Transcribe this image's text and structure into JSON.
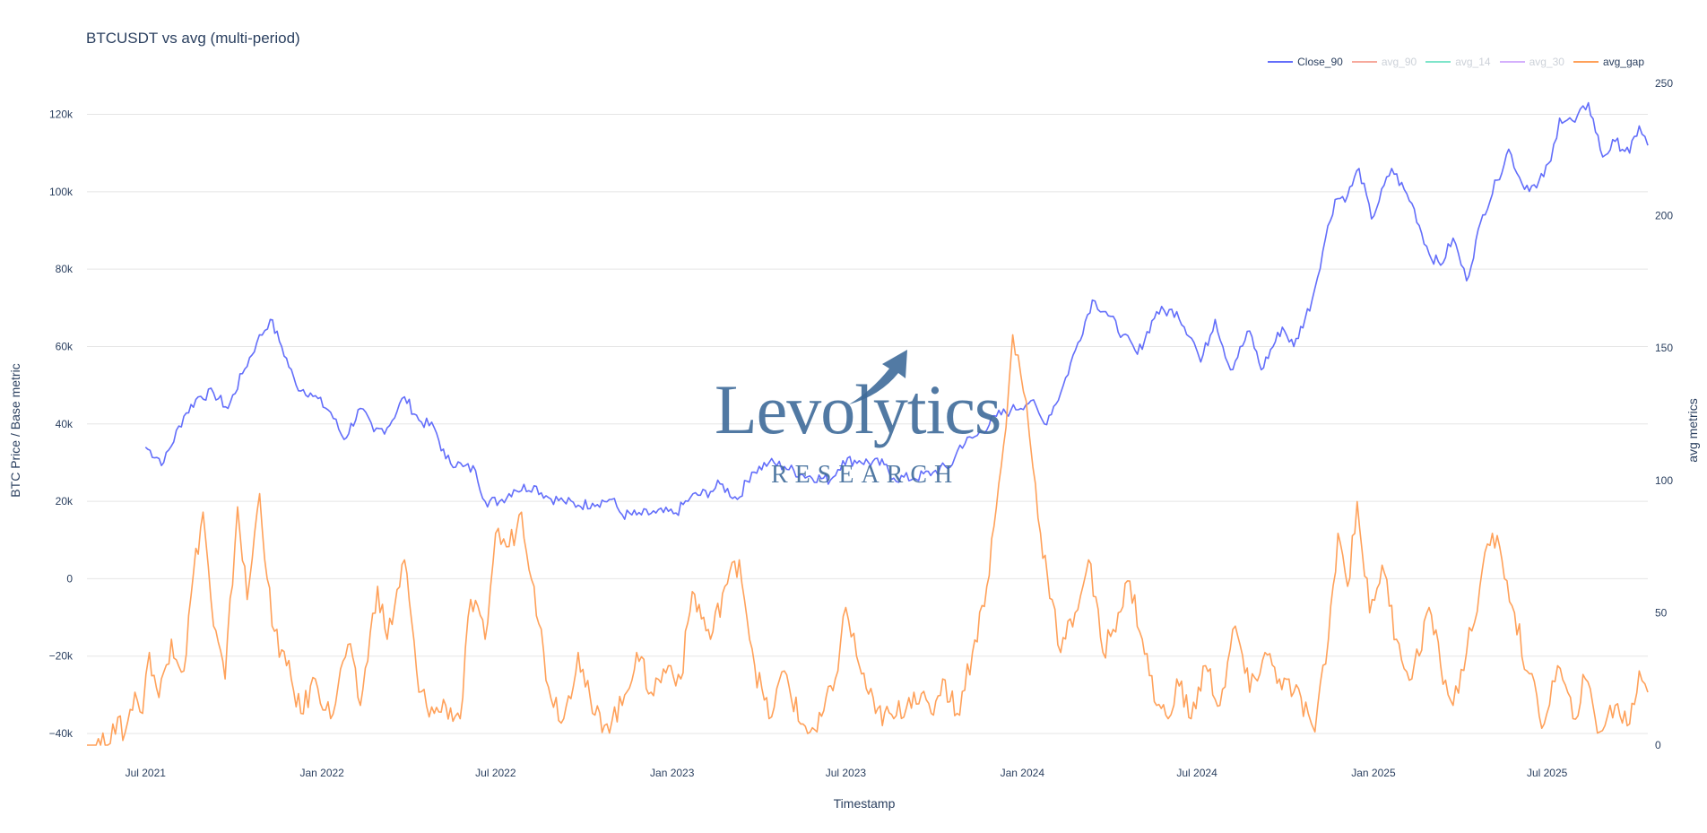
{
  "title": "BTCUSDT vs avg (multi-period)",
  "legend": [
    {
      "label": "Close_90",
      "color": "#636efa",
      "visible": true
    },
    {
      "label": "avg_90",
      "color": "#ef553b",
      "visible": false
    },
    {
      "label": "avg_14",
      "color": "#00cc96",
      "visible": false
    },
    {
      "label": "avg_30",
      "color": "#ab63fa",
      "visible": false
    },
    {
      "label": "avg_gap",
      "color": "#ffa15a",
      "visible": true
    }
  ],
  "watermark": {
    "word": "Levolytics",
    "sub": "RESEARCH"
  },
  "colors": {
    "grid": "#e5e5e5",
    "axis_text": "#2a3f5f",
    "close": "#636efa",
    "gap": "#ffa15a"
  },
  "chart_data": {
    "type": "line",
    "title": "BTCUSDT vs avg (multi-period)",
    "xlabel": "Timestamp",
    "ylabel": "BTC Price / Base metric",
    "y2label": "avg metrics",
    "ylim": [
      -43000,
      128000
    ],
    "y2lim": [
      0,
      250
    ],
    "x_range": [
      "2021-05-01",
      "2025-10-14"
    ],
    "x_ticks": [
      {
        "date": "2021-07-01",
        "label": "Jul 2021"
      },
      {
        "date": "2022-01-01",
        "label": "Jan 2022"
      },
      {
        "date": "2022-07-01",
        "label": "Jul 2022"
      },
      {
        "date": "2023-01-01",
        "label": "Jan 2023"
      },
      {
        "date": "2023-07-01",
        "label": "Jul 2023"
      },
      {
        "date": "2024-01-01",
        "label": "Jan 2024"
      },
      {
        "date": "2024-07-01",
        "label": "Jul 2024"
      },
      {
        "date": "2025-01-01",
        "label": "Jan 2025"
      },
      {
        "date": "2025-07-01",
        "label": "Jul 2025"
      }
    ],
    "y_ticks": [
      {
        "value": 120000,
        "label": "120k"
      },
      {
        "value": 100000,
        "label": "100k"
      },
      {
        "value": 80000,
        "label": "80k"
      },
      {
        "value": 60000,
        "label": "60k"
      },
      {
        "value": 40000,
        "label": "40k"
      },
      {
        "value": 20000,
        "label": "20k"
      },
      {
        "value": 0,
        "label": "0"
      },
      {
        "value": -20000,
        "label": "−20k"
      },
      {
        "value": -40000,
        "label": "−40k"
      }
    ],
    "y2_ticks": [
      {
        "value": 250,
        "label": "250"
      },
      {
        "value": 200,
        "label": "200"
      },
      {
        "value": 150,
        "label": "150"
      },
      {
        "value": 100,
        "label": "100"
      },
      {
        "value": 50,
        "label": "50"
      },
      {
        "value": 0,
        "label": "0"
      }
    ],
    "series": [
      {
        "name": "Close_90",
        "axis": "y",
        "color": "#636efa",
        "points": [
          [
            "2021-07-01",
            34000
          ],
          [
            "2021-07-20",
            30000
          ],
          [
            "2021-08-10",
            42000
          ],
          [
            "2021-08-25",
            47000
          ],
          [
            "2021-09-10",
            48000
          ],
          [
            "2021-09-25",
            44000
          ],
          [
            "2021-10-10",
            53000
          ],
          [
            "2021-10-25",
            61000
          ],
          [
            "2021-11-08",
            67000
          ],
          [
            "2021-11-20",
            60000
          ],
          [
            "2021-12-05",
            50000
          ],
          [
            "2021-12-20",
            48000
          ],
          [
            "2022-01-10",
            43000
          ],
          [
            "2022-01-24",
            36000
          ],
          [
            "2022-02-10",
            44000
          ],
          [
            "2022-02-24",
            38000
          ],
          [
            "2022-03-10",
            39000
          ],
          [
            "2022-03-28",
            47000
          ],
          [
            "2022-04-12",
            41000
          ],
          [
            "2022-04-28",
            39000
          ],
          [
            "2022-05-10",
            31000
          ],
          [
            "2022-05-28",
            29000
          ],
          [
            "2022-06-10",
            28000
          ],
          [
            "2022-06-20",
            20000
          ],
          [
            "2022-07-05",
            20000
          ],
          [
            "2022-07-20",
            23000
          ],
          [
            "2022-08-10",
            24000
          ],
          [
            "2022-08-25",
            21000
          ],
          [
            "2022-09-10",
            20000
          ],
          [
            "2022-09-25",
            19000
          ],
          [
            "2022-10-10",
            19500
          ],
          [
            "2022-10-30",
            20500
          ],
          [
            "2022-11-10",
            16500
          ],
          [
            "2022-11-25",
            16500
          ],
          [
            "2022-12-15",
            17000
          ],
          [
            "2023-01-05",
            17000
          ],
          [
            "2023-01-20",
            21000
          ],
          [
            "2023-02-10",
            22500
          ],
          [
            "2023-02-20",
            24500
          ],
          [
            "2023-03-10",
            20500
          ],
          [
            "2023-03-25",
            27500
          ],
          [
            "2023-04-12",
            30000
          ],
          [
            "2023-04-28",
            29000
          ],
          [
            "2023-05-15",
            27000
          ],
          [
            "2023-06-15",
            25500
          ],
          [
            "2023-06-28",
            30500
          ],
          [
            "2023-07-15",
            30500
          ],
          [
            "2023-08-10",
            29500
          ],
          [
            "2023-08-20",
            26000
          ],
          [
            "2023-09-10",
            26000
          ],
          [
            "2023-09-30",
            27500
          ],
          [
            "2023-10-20",
            29500
          ],
          [
            "2023-10-28",
            34500
          ],
          [
            "2023-11-15",
            37000
          ],
          [
            "2023-12-05",
            42000
          ],
          [
            "2023-12-20",
            43500
          ],
          [
            "2024-01-10",
            46000
          ],
          [
            "2024-01-24",
            40000
          ],
          [
            "2024-02-10",
            48000
          ],
          [
            "2024-02-28",
            61000
          ],
          [
            "2024-03-14",
            72000
          ],
          [
            "2024-03-28",
            69000
          ],
          [
            "2024-04-15",
            63000
          ],
          [
            "2024-04-30",
            58000
          ],
          [
            "2024-05-20",
            69000
          ],
          [
            "2024-06-10",
            69000
          ],
          [
            "2024-06-28",
            61000
          ],
          [
            "2024-07-05",
            56000
          ],
          [
            "2024-07-20",
            67000
          ],
          [
            "2024-08-05",
            54000
          ],
          [
            "2024-08-25",
            64000
          ],
          [
            "2024-09-06",
            54000
          ],
          [
            "2024-09-28",
            65000
          ],
          [
            "2024-10-10",
            60000
          ],
          [
            "2024-10-29",
            72000
          ],
          [
            "2024-11-12",
            88000
          ],
          [
            "2024-11-22",
            98000
          ],
          [
            "2024-12-05",
            99000
          ],
          [
            "2024-12-17",
            106000
          ],
          [
            "2024-12-30",
            93000
          ],
          [
            "2025-01-20",
            106000
          ],
          [
            "2025-02-10",
            97000
          ],
          [
            "2025-02-28",
            84000
          ],
          [
            "2025-03-12",
            81000
          ],
          [
            "2025-03-25",
            88000
          ],
          [
            "2025-04-08",
            77000
          ],
          [
            "2025-04-25",
            94000
          ],
          [
            "2025-05-10",
            103000
          ],
          [
            "2025-05-22",
            111000
          ],
          [
            "2025-06-05",
            102000
          ],
          [
            "2025-06-20",
            101000
          ],
          [
            "2025-07-05",
            108000
          ],
          [
            "2025-07-14",
            119000
          ],
          [
            "2025-07-30",
            118000
          ],
          [
            "2025-08-13",
            123000
          ],
          [
            "2025-08-28",
            109000
          ],
          [
            "2025-09-10",
            113000
          ],
          [
            "2025-09-25",
            110000
          ],
          [
            "2025-10-05",
            117000
          ],
          [
            "2025-10-14",
            112000
          ]
        ]
      },
      {
        "name": "avg_gap",
        "axis": "y2",
        "color": "#ffa15a",
        "points": [
          [
            "2021-05-01",
            0
          ],
          [
            "2021-05-20",
            0
          ],
          [
            "2021-05-28",
            8
          ],
          [
            "2021-06-10",
            5
          ],
          [
            "2021-06-20",
            20
          ],
          [
            "2021-06-28",
            12
          ],
          [
            "2021-07-05",
            35
          ],
          [
            "2021-07-15",
            18
          ],
          [
            "2021-07-28",
            40
          ],
          [
            "2021-08-10",
            28
          ],
          [
            "2021-08-20",
            65
          ],
          [
            "2021-08-30",
            88
          ],
          [
            "2021-09-10",
            45
          ],
          [
            "2021-09-22",
            25
          ],
          [
            "2021-10-05",
            90
          ],
          [
            "2021-10-15",
            55
          ],
          [
            "2021-10-28",
            95
          ],
          [
            "2021-11-10",
            45
          ],
          [
            "2021-11-25",
            30
          ],
          [
            "2021-12-10",
            12
          ],
          [
            "2021-12-25",
            25
          ],
          [
            "2022-01-10",
            10
          ],
          [
            "2022-01-28",
            38
          ],
          [
            "2022-02-10",
            15
          ],
          [
            "2022-02-28",
            60
          ],
          [
            "2022-03-10",
            40
          ],
          [
            "2022-03-28",
            70
          ],
          [
            "2022-04-12",
            20
          ],
          [
            "2022-04-28",
            12
          ],
          [
            "2022-05-10",
            15
          ],
          [
            "2022-05-25",
            10
          ],
          [
            "2022-06-05",
            55
          ],
          [
            "2022-06-20",
            40
          ],
          [
            "2022-07-01",
            80
          ],
          [
            "2022-07-15",
            75
          ],
          [
            "2022-07-28",
            88
          ],
          [
            "2022-08-10",
            60
          ],
          [
            "2022-08-25",
            22
          ],
          [
            "2022-09-10",
            10
          ],
          [
            "2022-09-25",
            35
          ],
          [
            "2022-10-10",
            12
          ],
          [
            "2022-10-25",
            8
          ],
          [
            "2022-11-10",
            15
          ],
          [
            "2022-11-25",
            35
          ],
          [
            "2022-12-10",
            20
          ],
          [
            "2022-12-28",
            30
          ],
          [
            "2023-01-10",
            25
          ],
          [
            "2023-01-22",
            58
          ],
          [
            "2023-02-10",
            40
          ],
          [
            "2023-02-25",
            60
          ],
          [
            "2023-03-12",
            70
          ],
          [
            "2023-03-28",
            30
          ],
          [
            "2023-04-12",
            10
          ],
          [
            "2023-04-28",
            28
          ],
          [
            "2023-05-15",
            8
          ],
          [
            "2023-06-01",
            5
          ],
          [
            "2023-06-20",
            25
          ],
          [
            "2023-07-01",
            52
          ],
          [
            "2023-07-15",
            30
          ],
          [
            "2023-08-01",
            12
          ],
          [
            "2023-08-20",
            10
          ],
          [
            "2023-09-10",
            20
          ],
          [
            "2023-09-28",
            12
          ],
          [
            "2023-10-10",
            25
          ],
          [
            "2023-10-25",
            12
          ],
          [
            "2023-11-10",
            35
          ],
          [
            "2023-11-25",
            60
          ],
          [
            "2023-12-05",
            90
          ],
          [
            "2023-12-15",
            120
          ],
          [
            "2023-12-22",
            155
          ],
          [
            "2024-01-05",
            130
          ],
          [
            "2024-01-12",
            105
          ],
          [
            "2024-01-20",
            80
          ],
          [
            "2024-02-01",
            55
          ],
          [
            "2024-02-10",
            35
          ],
          [
            "2024-02-25",
            50
          ],
          [
            "2024-03-10",
            70
          ],
          [
            "2024-03-25",
            35
          ],
          [
            "2024-04-10",
            50
          ],
          [
            "2024-04-22",
            62
          ],
          [
            "2024-05-05",
            40
          ],
          [
            "2024-05-20",
            15
          ],
          [
            "2024-06-01",
            10
          ],
          [
            "2024-06-10",
            25
          ],
          [
            "2024-06-25",
            10
          ],
          [
            "2024-07-10",
            30
          ],
          [
            "2024-07-25",
            15
          ],
          [
            "2024-08-10",
            45
          ],
          [
            "2024-08-25",
            20
          ],
          [
            "2024-09-10",
            35
          ],
          [
            "2024-09-25",
            25
          ],
          [
            "2024-10-10",
            20
          ],
          [
            "2024-10-25",
            12
          ],
          [
            "2024-11-01",
            5
          ],
          [
            "2024-11-15",
            40
          ],
          [
            "2024-11-25",
            80
          ],
          [
            "2024-12-05",
            60
          ],
          [
            "2024-12-15",
            92
          ],
          [
            "2024-12-28",
            50
          ],
          [
            "2025-01-10",
            68
          ],
          [
            "2025-01-25",
            40
          ],
          [
            "2025-02-10",
            25
          ],
          [
            "2025-02-28",
            52
          ],
          [
            "2025-03-12",
            30
          ],
          [
            "2025-03-25",
            15
          ],
          [
            "2025-04-08",
            35
          ],
          [
            "2025-04-22",
            60
          ],
          [
            "2025-05-05",
            80
          ],
          [
            "2025-05-15",
            70
          ],
          [
            "2025-05-28",
            50
          ],
          [
            "2025-06-10",
            28
          ],
          [
            "2025-06-28",
            8
          ],
          [
            "2025-07-12",
            30
          ],
          [
            "2025-07-28",
            10
          ],
          [
            "2025-08-10",
            25
          ],
          [
            "2025-08-25",
            5
          ],
          [
            "2025-09-10",
            15
          ],
          [
            "2025-09-25",
            8
          ],
          [
            "2025-10-05",
            28
          ],
          [
            "2025-10-14",
            20
          ]
        ]
      }
    ]
  }
}
